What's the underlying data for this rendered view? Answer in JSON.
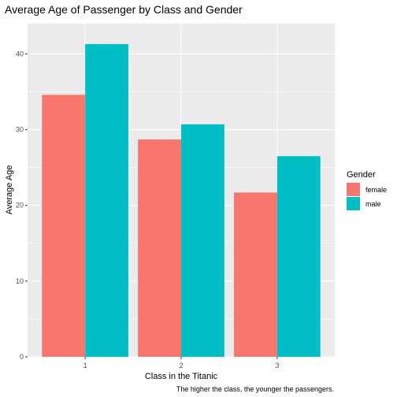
{
  "chart_data": {
    "type": "bar",
    "title": "Average Age of Passenger by Class and Gender",
    "xlabel": "Class in the Titanic",
    "ylabel": "Average Age",
    "caption": "The higher the class, the younger the passengers.",
    "categories": [
      "1",
      "2",
      "3"
    ],
    "series": [
      {
        "name": "female",
        "values": [
          34.6,
          28.7,
          21.7
        ],
        "color": "#F8766D"
      },
      {
        "name": "male",
        "values": [
          41.3,
          30.7,
          26.5
        ],
        "color": "#00BFC4"
      }
    ],
    "ylim": [
      0,
      44
    ],
    "yticks": [
      0,
      10,
      20,
      30,
      40
    ],
    "grid": true,
    "legend": {
      "title": "Gender",
      "position": "right"
    },
    "panel_background": "#EBEBEB",
    "grid_color": "#FFFFFF"
  }
}
